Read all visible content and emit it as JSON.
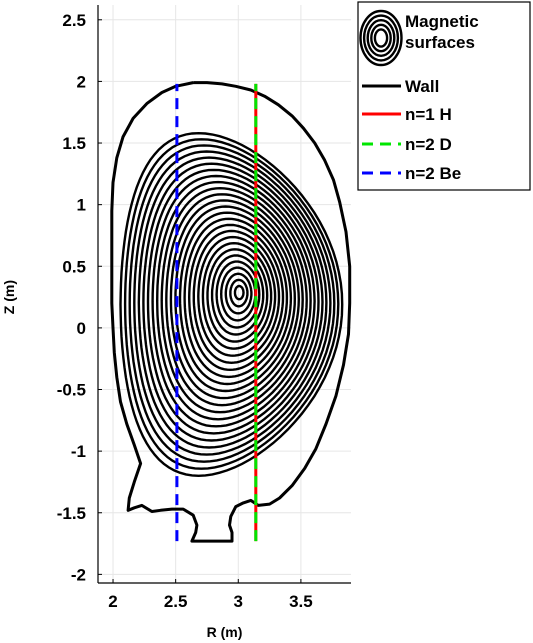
{
  "chart_data": {
    "type": "line",
    "xlabel": "R (m)",
    "ylabel": "Z (m)",
    "xlim": [
      1.88,
      3.9
    ],
    "ylim": [
      -2.07,
      2.62
    ],
    "xticks": [
      2,
      2.5,
      3,
      3.5
    ],
    "xtick_labels": [
      "2",
      "2.5",
      "3",
      "3.5"
    ],
    "yticks": [
      2.5,
      2,
      1.5,
      1,
      0.5,
      0,
      -0.5,
      -1,
      -1.5,
      -2
    ],
    "ytick_labels": [
      "2.5",
      "2",
      "1.5",
      "1",
      "0.5",
      "0",
      "-0.5",
      "-1",
      "-1.5",
      "-2"
    ],
    "grid": true,
    "legend_position": "top-right, outside plot area",
    "magnetic_surfaces": {
      "name": "Magnetic surfaces",
      "color": "#000000",
      "axis_center": [
        3.01,
        0.29
      ],
      "outer_boundary": {
        "r_min": 2.06,
        "r_max": 3.83,
        "z_min": -1.2,
        "z_max": 1.58
      },
      "count": 26
    },
    "wall": {
      "name": "Wall",
      "color": "#000000",
      "points": [
        [
          2.64,
          1.99
        ],
        [
          2.75,
          1.99
        ],
        [
          2.87,
          1.98
        ],
        [
          2.98,
          1.96
        ],
        [
          3.1,
          1.93
        ],
        [
          3.21,
          1.88
        ],
        [
          3.32,
          1.81
        ],
        [
          3.43,
          1.72
        ],
        [
          3.52,
          1.62
        ],
        [
          3.61,
          1.5
        ],
        [
          3.69,
          1.36
        ],
        [
          3.76,
          1.2
        ],
        [
          3.81,
          1.02
        ],
        [
          3.86,
          0.78
        ],
        [
          3.89,
          0.5
        ],
        [
          3.89,
          0.2
        ],
        [
          3.88,
          -0.05
        ],
        [
          3.84,
          -0.3
        ],
        [
          3.78,
          -0.55
        ],
        [
          3.7,
          -0.78
        ],
        [
          3.62,
          -0.98
        ],
        [
          3.53,
          -1.14
        ],
        [
          3.43,
          -1.28
        ],
        [
          3.33,
          -1.38
        ],
        [
          3.25,
          -1.43
        ],
        [
          3.16,
          -1.44
        ],
        [
          3.1,
          -1.4
        ],
        [
          3.04,
          -1.42
        ],
        [
          2.98,
          -1.45
        ],
        [
          2.94,
          -1.53
        ],
        [
          2.93,
          -1.6
        ],
        [
          2.95,
          -1.66
        ],
        [
          2.95,
          -1.73
        ],
        [
          2.85,
          -1.73
        ],
        [
          2.72,
          -1.73
        ],
        [
          2.63,
          -1.73
        ],
        [
          2.66,
          -1.66
        ],
        [
          2.67,
          -1.6
        ],
        [
          2.64,
          -1.52
        ],
        [
          2.56,
          -1.47
        ],
        [
          2.47,
          -1.47
        ],
        [
          2.38,
          -1.48
        ],
        [
          2.31,
          -1.49
        ],
        [
          2.23,
          -1.44
        ],
        [
          2.17,
          -1.46
        ],
        [
          2.12,
          -1.48
        ],
        [
          2.13,
          -1.38
        ],
        [
          2.17,
          -1.25
        ],
        [
          2.22,
          -1.1
        ],
        [
          2.17,
          -0.95
        ],
        [
          2.11,
          -0.78
        ],
        [
          2.06,
          -0.6
        ],
        [
          2.03,
          -0.4
        ],
        [
          2.01,
          -0.2
        ],
        [
          2.0,
          0.0
        ],
        [
          1.99,
          0.2
        ],
        [
          1.99,
          0.45
        ],
        [
          1.99,
          0.7
        ],
        [
          1.99,
          0.95
        ],
        [
          2.0,
          1.18
        ],
        [
          2.03,
          1.38
        ],
        [
          2.08,
          1.55
        ],
        [
          2.16,
          1.7
        ],
        [
          2.27,
          1.82
        ],
        [
          2.39,
          1.91
        ],
        [
          2.5,
          1.96
        ],
        [
          2.64,
          1.99
        ]
      ]
    },
    "series": [
      {
        "name": "n=1 H",
        "color": "#ff0000",
        "style": "solid",
        "x": [
          3.14,
          3.14
        ],
        "y": [
          -1.73,
          1.98
        ]
      },
      {
        "name": "n=2 D",
        "color": "#00e600",
        "style": "dashed",
        "x": [
          3.14,
          3.14
        ],
        "y": [
          -1.73,
          1.98
        ]
      },
      {
        "name": "n=2 Be",
        "color": "#0000ff",
        "style": "dashed",
        "x": [
          2.51,
          2.51
        ],
        "y": [
          -1.73,
          1.98
        ]
      }
    ],
    "legend": [
      {
        "label": "Magnetic surfaces",
        "label_lines": [
          "Magnetic",
          "surfaces"
        ],
        "marker": "concentric-ellipses-icon"
      },
      {
        "label": "Wall",
        "marker": "line"
      },
      {
        "label": "n=1 H",
        "marker": "line"
      },
      {
        "label": "n=2 D",
        "marker": "dashed-line"
      },
      {
        "label": "n=2 Be",
        "marker": "dashed-line"
      }
    ]
  }
}
